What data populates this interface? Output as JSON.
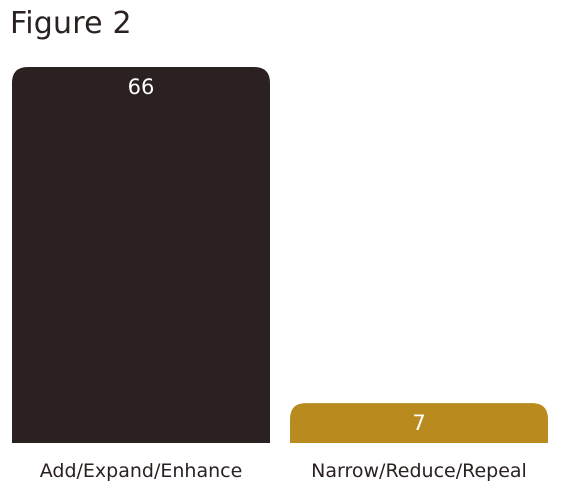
{
  "title": "Figure 2",
  "chart_data": {
    "type": "bar",
    "categories": [
      "Add/Expand/Enhance",
      "Narrow/Reduce/Repeal"
    ],
    "values": [
      66,
      7
    ],
    "colors": [
      "#2a2120",
      "#b98a1d"
    ],
    "ylim": [
      0,
      66
    ],
    "grid": false,
    "legend": "none"
  }
}
